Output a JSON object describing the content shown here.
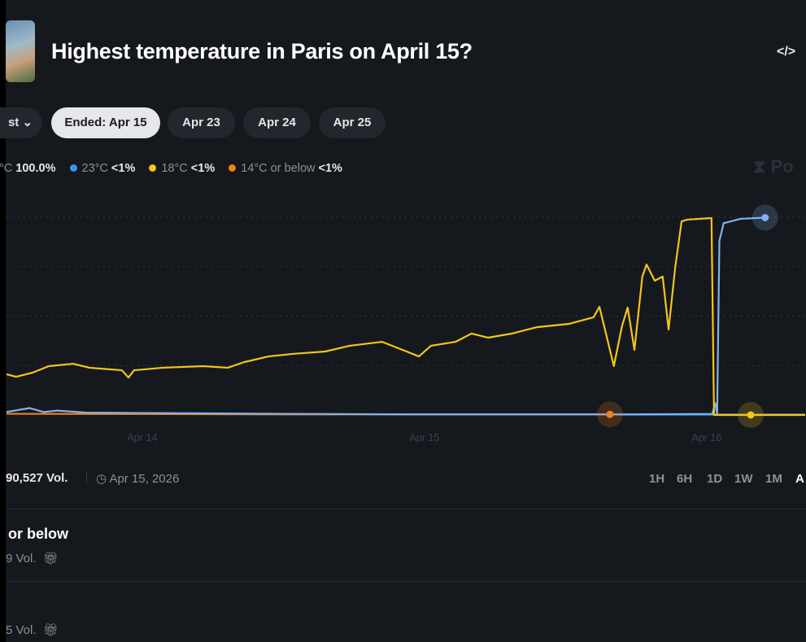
{
  "header": {
    "title": "Highest temperature in Paris on April 15?",
    "embed_icon": "code-icon"
  },
  "date_tabs": {
    "dropdown_label": "st",
    "items": [
      "Ended: Apr 15",
      "Apr 23",
      "Apr 24",
      "Apr 25"
    ],
    "active": 0
  },
  "legend": [
    {
      "label": "°C",
      "value": "100.0%",
      "color": null
    },
    {
      "label": "23°C",
      "value": "<1%",
      "color": "#3b95f0"
    },
    {
      "label": "18°C",
      "value": "<1%",
      "color": "#f5c518"
    },
    {
      "label": "14°C or below",
      "value": "<1%",
      "color": "#f0801e"
    }
  ],
  "brand_watermark": "Po",
  "footer": {
    "volume": "90,527 Vol.",
    "date": "Apr 15, 2026",
    "ranges": [
      "1H",
      "6H",
      "1D",
      "1W",
      "1M",
      "A"
    ]
  },
  "outcomes": [
    {
      "title": "or below",
      "volume": "9 Vol."
    },
    {
      "title": "",
      "volume": "5 Vol."
    }
  ],
  "chart_data": {
    "type": "line",
    "xlim": [
      13.519,
      16.349
    ],
    "ylim": [
      0,
      100
    ],
    "x_ticks": [
      {
        "value": 14,
        "label": "Apr 14"
      },
      {
        "value": 15,
        "label": "Apr 15"
      },
      {
        "value": 16,
        "label": "Apr 16"
      }
    ],
    "y_gridlines": [
      25,
      50,
      75,
      100
    ],
    "series": [
      {
        "name": "18°C",
        "color": "#f5c518",
        "points": [
          [
            13.519,
            20.6
          ],
          [
            13.553,
            19.3
          ],
          [
            13.611,
            21.4
          ],
          [
            13.669,
            24.7
          ],
          [
            13.755,
            25.9
          ],
          [
            13.813,
            23.9
          ],
          [
            13.928,
            22.6
          ],
          [
            13.951,
            18.9
          ],
          [
            13.971,
            22.6
          ],
          [
            14.072,
            23.9
          ],
          [
            14.216,
            24.7
          ],
          [
            14.303,
            23.9
          ],
          [
            14.36,
            26.7
          ],
          [
            14.447,
            29.6
          ],
          [
            14.533,
            30.9
          ],
          [
            14.648,
            32.1
          ],
          [
            14.735,
            35.0
          ],
          [
            14.85,
            37.0
          ],
          [
            14.937,
            32.1
          ],
          [
            14.98,
            29.6
          ],
          [
            15.023,
            35.0
          ],
          [
            15.11,
            37.0
          ],
          [
            15.167,
            41.2
          ],
          [
            15.225,
            39.1
          ],
          [
            15.311,
            41.2
          ],
          [
            15.398,
            44.4
          ],
          [
            15.513,
            46.1
          ],
          [
            15.599,
            49.4
          ],
          [
            15.62,
            54.7
          ],
          [
            15.643,
            41.2
          ],
          [
            15.671,
            24.7
          ],
          [
            15.7,
            45.0
          ],
          [
            15.72,
            54.3
          ],
          [
            15.744,
            32.9
          ],
          [
            15.772,
            70.0
          ],
          [
            15.787,
            76.1
          ],
          [
            15.816,
            67.9
          ],
          [
            15.844,
            70.0
          ],
          [
            15.865,
            43.2
          ],
          [
            15.888,
            74.1
          ],
          [
            15.911,
            97.9
          ],
          [
            15.931,
            98.8
          ],
          [
            16.017,
            99.6
          ],
          [
            16.026,
            0
          ],
          [
            16.349,
            0
          ]
        ]
      },
      {
        "name": "23°C",
        "color": "#7fb2ee",
        "points": [
          [
            13.519,
            1.5
          ],
          [
            13.6,
            3.5
          ],
          [
            13.65,
            1.5
          ],
          [
            13.7,
            2.2
          ],
          [
            13.8,
            1.2
          ],
          [
            14.0,
            1.0
          ],
          [
            14.5,
            0.6
          ],
          [
            15.0,
            0.3
          ],
          [
            15.7,
            0.3
          ],
          [
            16.02,
            0.5
          ],
          [
            16.03,
            6
          ],
          [
            16.037,
            0.4
          ],
          [
            16.045,
            88
          ],
          [
            16.06,
            97
          ],
          [
            16.12,
            99.2
          ],
          [
            16.207,
            99.8
          ]
        ]
      },
      {
        "name": "23°C baseline",
        "color": "#3b95f0",
        "points": [
          [
            15.657,
            0.2
          ],
          [
            16.349,
            0.2
          ]
        ]
      },
      {
        "name": "14°C or below",
        "color": "#f0801e",
        "points": [
          [
            13.519,
            0.6
          ],
          [
            14.0,
            0.5
          ],
          [
            14.5,
            0.3
          ],
          [
            15.0,
            0.3
          ],
          [
            15.657,
            0.3
          ]
        ]
      }
    ],
    "markers": [
      {
        "series": "23°C",
        "x": 16.207,
        "y": 99.8,
        "color": "#7fb2ee"
      },
      {
        "series": "14°C or below",
        "x": 15.657,
        "y": 0.3,
        "color": "#f0801e"
      },
      {
        "series": "18°C",
        "x": 16.156,
        "y": 0,
        "color": "#f5c518"
      }
    ]
  }
}
